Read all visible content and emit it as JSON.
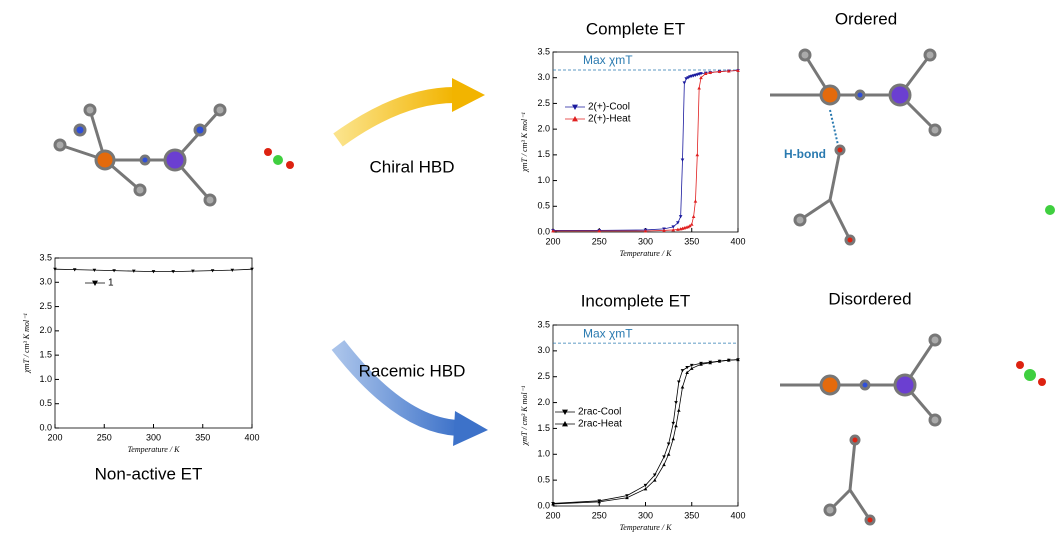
{
  "chart_data": [
    {
      "type": "line",
      "caption": "Non-active ET",
      "xlabel": "Temperature / K",
      "ylabel": "χmT / cm³ K mol⁻¹",
      "x": [
        200,
        220,
        240,
        260,
        280,
        300,
        320,
        340,
        360,
        380,
        400
      ],
      "series": [
        {
          "name": "1",
          "color": "#000000",
          "marker": "triangle-down",
          "values": [
            3.27,
            3.26,
            3.25,
            3.24,
            3.23,
            3.22,
            3.22,
            3.23,
            3.24,
            3.25,
            3.27
          ]
        }
      ],
      "xlim": [
        200,
        400
      ],
      "xticks": [
        200,
        250,
        300,
        350,
        400
      ],
      "ylim": [
        0,
        3.5
      ],
      "yticks": [
        {
          "value": 0,
          "label": "0.0"
        },
        0.5,
        {
          "value": 1,
          "label": "1.0"
        },
        1.5,
        {
          "value": 2,
          "label": "2.0"
        },
        2.5,
        {
          "value": 3,
          "label": "3.0"
        },
        3.5
      ]
    },
    {
      "type": "line",
      "title": "Complete ET",
      "xlabel": "Temperature / K",
      "ylabel": "χmT / cm³ K mol⁻¹",
      "reference_line": {
        "label": "Max χmT",
        "value": 3.15,
        "color": "#2a7ab0"
      },
      "x": [
        200,
        250,
        300,
        320,
        330,
        335,
        338,
        340,
        342,
        344,
        346,
        348,
        350,
        352,
        354,
        356,
        358,
        360,
        365,
        370,
        380,
        390,
        400
      ],
      "series": [
        {
          "name": "2(+)-Cool",
          "color": "#1a1a9e",
          "marker": "triangle-down",
          "values": [
            0.03,
            0.03,
            0.04,
            0.06,
            0.1,
            0.18,
            0.3,
            1.4,
            2.9,
            2.98,
            3.0,
            3.02,
            3.03,
            3.04,
            3.05,
            3.06,
            3.07,
            3.08,
            3.09,
            3.1,
            3.12,
            3.13,
            3.14
          ]
        },
        {
          "name": "2(+)-Heat",
          "color": "#e02020",
          "marker": "triangle-up",
          "values": [
            0.02,
            0.02,
            0.02,
            0.03,
            0.04,
            0.05,
            0.06,
            0.07,
            0.08,
            0.09,
            0.1,
            0.12,
            0.15,
            0.3,
            0.6,
            1.5,
            2.8,
            3.0,
            3.08,
            3.1,
            3.12,
            3.13,
            3.14
          ]
        }
      ],
      "xlim": [
        200,
        400
      ],
      "xticks": [
        200,
        250,
        300,
        350,
        400
      ],
      "ylim": [
        0,
        3.5
      ],
      "yticks": [
        {
          "value": 0,
          "label": "0.0"
        },
        0.5,
        {
          "value": 1,
          "label": "1.0"
        },
        1.5,
        {
          "value": 2,
          "label": "2.0"
        },
        2.5,
        {
          "value": 3,
          "label": "3.0"
        },
        3.5
      ]
    },
    {
      "type": "line",
      "title": "Incomplete ET",
      "xlabel": "Temperature / K",
      "ylabel": "χmT / cm³ K mol⁻¹",
      "reference_line": {
        "label": "Max χmT",
        "value": 3.15,
        "color": "#2a7ab0"
      },
      "x": [
        200,
        250,
        280,
        300,
        310,
        320,
        325,
        330,
        333,
        336,
        340,
        345,
        350,
        360,
        370,
        380,
        390,
        400
      ],
      "series": [
        {
          "name": "2rac-Cool",
          "color": "#000000",
          "marker": "triangle-down",
          "values": [
            0.05,
            0.1,
            0.2,
            0.4,
            0.6,
            0.95,
            1.2,
            1.6,
            2.0,
            2.4,
            2.62,
            2.68,
            2.72,
            2.76,
            2.78,
            2.8,
            2.82,
            2.83
          ]
        },
        {
          "name": "2rac-Heat",
          "color": "#000000",
          "marker": "triangle-up",
          "values": [
            0.04,
            0.08,
            0.16,
            0.33,
            0.5,
            0.8,
            1.0,
            1.3,
            1.55,
            1.85,
            2.3,
            2.58,
            2.66,
            2.74,
            2.77,
            2.8,
            2.82,
            2.83
          ]
        }
      ],
      "xlim": [
        200,
        400
      ],
      "xticks": [
        200,
        250,
        300,
        350,
        400
      ],
      "ylim": [
        0,
        3.5
      ],
      "yticks": [
        {
          "value": 0,
          "label": "0.0"
        },
        0.5,
        {
          "value": 1,
          "label": "1.0"
        },
        1.5,
        {
          "value": 2,
          "label": "2.0"
        },
        2.5,
        {
          "value": 3,
          "label": "3.0"
        },
        3.5
      ]
    }
  ],
  "labels": {
    "chiral": "Chiral HBD",
    "racemic": "Racemic HBD",
    "ordered": "Ordered",
    "disordered": "Disordered",
    "hbond": "H-bond"
  }
}
